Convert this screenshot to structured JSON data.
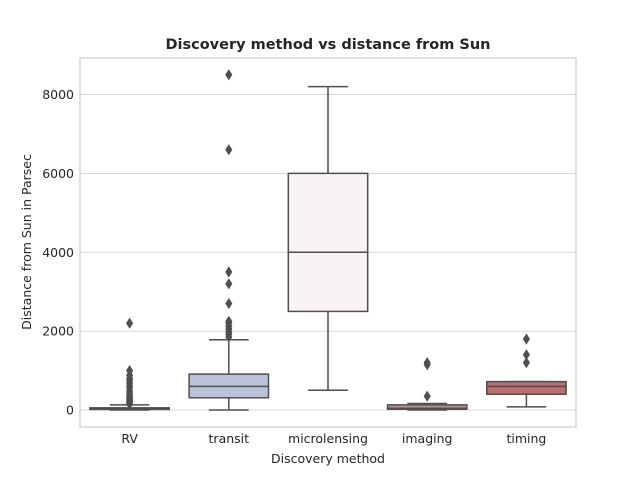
{
  "chart_data": {
    "type": "box",
    "title": "Discovery method vs distance from Sun",
    "xlabel": "Discovery method",
    "ylabel": "Distance from Sun in Parsec",
    "ylim": [
      -400,
      8950
    ],
    "yticks": [
      0,
      2000,
      4000,
      6000,
      8000
    ],
    "grid": true,
    "categories": [
      "RV",
      "transit",
      "microlensing",
      "imaging",
      "timing"
    ],
    "boxes": [
      {
        "category": "RV",
        "color": "#5975a4",
        "whisker_low": 0,
        "q1": 15,
        "median": 30,
        "q3": 55,
        "whisker_high": 130,
        "outliers": [
          150,
          180,
          210,
          250,
          290,
          330,
          370,
          420,
          480,
          560,
          620,
          680,
          750,
          800,
          880,
          1000,
          2200
        ]
      },
      {
        "category": "transit",
        "color": "#b9c2d6",
        "whisker_low": 0,
        "q1": 310,
        "median": 600,
        "q3": 910,
        "whisker_high": 1780,
        "outliers": [
          1850,
          1920,
          1980,
          2050,
          2120,
          2200,
          2250,
          2700,
          3200,
          3500,
          6600,
          8500
        ]
      },
      {
        "category": "microlensing",
        "color": "#f8f4f3",
        "whisker_low": 500,
        "q1": 2500,
        "median": 4000,
        "q3": 6000,
        "whisker_high": 8200,
        "outliers": []
      },
      {
        "category": "imaging",
        "color": "#c38f91",
        "whisker_low": 0,
        "q1": 20,
        "median": 45,
        "q3": 130,
        "whisker_high": 165,
        "outliers": [
          350,
          1150,
          1200
        ]
      },
      {
        "category": "timing",
        "color": "#b8716e",
        "whisker_low": 80,
        "q1": 400,
        "median": 600,
        "q3": 720,
        "whisker_high": 720,
        "outliers": [
          1200,
          1400,
          1800
        ]
      }
    ],
    "line_color": "#4f4f4f"
  }
}
